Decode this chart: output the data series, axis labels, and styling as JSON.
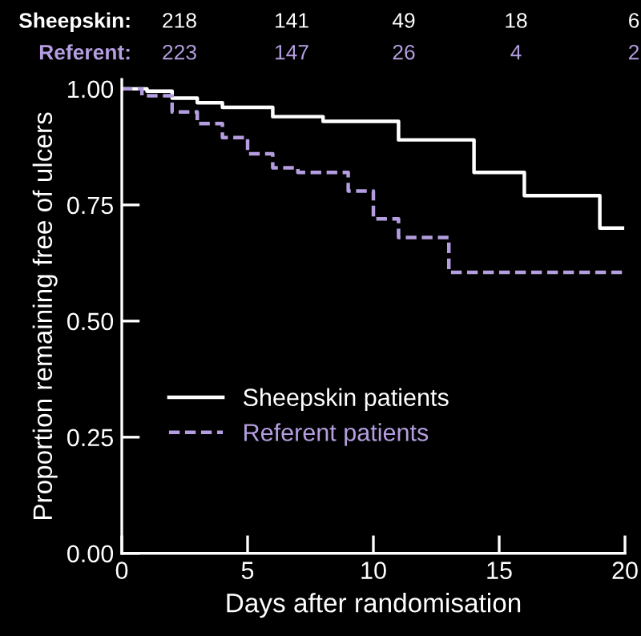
{
  "chart_data": {
    "type": "step",
    "xlabel": "Days after randomisation",
    "ylabel": "Proportion remaining free of ulcers",
    "xlim": [
      0,
      20
    ],
    "ylim": [
      0,
      1.02
    ],
    "xticks": [
      0,
      5,
      10,
      15,
      20
    ],
    "yticks": [
      {
        "value": 0,
        "label": "0.00"
      },
      {
        "value": 0.25,
        "label": "0.25"
      },
      {
        "value": 0.5,
        "label": "0.50"
      },
      {
        "value": 0.75,
        "label": "0.75"
      },
      {
        "value": 1.0,
        "label": "1.00"
      }
    ],
    "series": [
      {
        "name": "Sheepskin patients",
        "color": "#ffffff",
        "line_style": "solid",
        "x": [
          0,
          1,
          2,
          3,
          4,
          6,
          8,
          11,
          14,
          16,
          19,
          19.9
        ],
        "values": [
          1.0,
          0.995,
          0.98,
          0.97,
          0.96,
          0.94,
          0.93,
          0.89,
          0.82,
          0.77,
          0.7,
          0.7
        ]
      },
      {
        "name": "Referent patients",
        "color": "#b49ee0",
        "line_style": "dashed",
        "x": [
          0,
          0.8,
          2,
          3,
          4,
          5,
          6,
          7,
          9,
          10,
          11,
          13,
          19.9
        ],
        "values": [
          1.0,
          0.985,
          0.95,
          0.925,
          0.895,
          0.86,
          0.83,
          0.82,
          0.78,
          0.72,
          0.68,
          0.605,
          0.605
        ]
      }
    ],
    "annotations": [
      "Sheepskin:",
      "218",
      "141",
      "49",
      "18",
      "6",
      "Referent:",
      "223",
      "147",
      "26",
      "4",
      "2"
    ],
    "legend": "bottom left",
    "grid": false,
    "marker": "none"
  }
}
